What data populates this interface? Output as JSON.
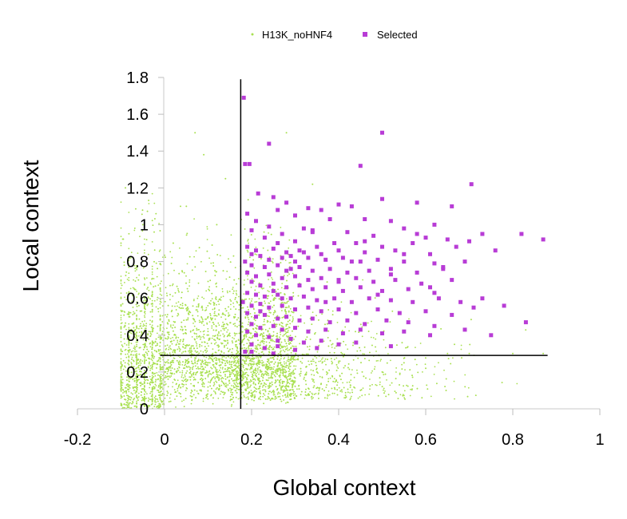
{
  "chart_data": {
    "type": "scatter",
    "xlabel": "Global context",
    "ylabel": "Local context",
    "xlim": [
      -0.2,
      1.0
    ],
    "ylim": [
      0,
      1.8
    ],
    "x_ticks": [
      "-0.2",
      "0",
      "0.2",
      "0.4",
      "0.6",
      "0.8",
      "1"
    ],
    "y_ticks": [
      "0",
      "0.2",
      "0.4",
      "0.6",
      "0.8",
      "1",
      "1.2",
      "1.4",
      "1.6",
      "1.8"
    ],
    "x_tick_values": [
      -0.2,
      0,
      0.2,
      0.4,
      0.6,
      0.8,
      1.0
    ],
    "y_tick_values": [
      0,
      0.2,
      0.4,
      0.6,
      0.8,
      1.0,
      1.2,
      1.4,
      1.6,
      1.8
    ],
    "legend_position": "top-center",
    "thresholds": {
      "x": 0.175,
      "y": 0.29,
      "x_line_range": [
        -0.01,
        0.88
      ],
      "y_line_range": [
        0,
        1.79
      ]
    },
    "series": [
      {
        "name": "H13K_noHNF4",
        "color": "#a8e050",
        "marker": "dot",
        "description_points": "dense cloud, approx 4000 points concentrated x in [-0.1, 0.3], y in [0, 0.6]",
        "points": [
          [
            -0.1,
            0.02
          ],
          [
            -0.1,
            0.3
          ],
          [
            -0.1,
            0.6
          ],
          [
            -0.1,
            0.9
          ],
          [
            -0.09,
            1.2
          ],
          [
            -0.08,
            0.5
          ],
          [
            -0.07,
            0.1
          ],
          [
            -0.06,
            0.7
          ],
          [
            -0.05,
            1.0
          ],
          [
            -0.04,
            0.3
          ],
          [
            0.0,
            0.4
          ],
          [
            0.02,
            0.9
          ],
          [
            0.05,
            1.1
          ],
          [
            0.07,
            1.5
          ],
          [
            0.1,
            0.5
          ],
          [
            0.12,
            1.0
          ],
          [
            0.14,
            1.25
          ],
          [
            0.16,
            0.7
          ],
          [
            0.18,
            0.2
          ],
          [
            0.2,
            0.5
          ],
          [
            0.25,
            0.3
          ],
          [
            0.3,
            0.15
          ],
          [
            0.35,
            0.2
          ],
          [
            0.4,
            0.25
          ],
          [
            0.45,
            0.1
          ],
          [
            0.5,
            0.2
          ],
          [
            0.55,
            0.25
          ],
          [
            0.6,
            0.22
          ],
          [
            0.65,
            0.3
          ],
          [
            0.7,
            0.3
          ],
          [
            0.8,
            0.3
          ],
          [
            0.87,
            0.3
          ],
          [
            0.28,
            1.5
          ],
          [
            0.34,
            1.22
          ],
          [
            0.09,
            1.38
          ]
        ]
      },
      {
        "name": "Selected",
        "color": "#b83cd6",
        "marker": "square",
        "points": [
          [
            0.182,
            1.69
          ],
          [
            0.5,
            1.5
          ],
          [
            0.24,
            1.44
          ],
          [
            0.45,
            1.32
          ],
          [
            0.185,
            1.33
          ],
          [
            0.195,
            1.33
          ],
          [
            0.705,
            1.22
          ],
          [
            0.215,
            1.17
          ],
          [
            0.25,
            1.15
          ],
          [
            0.28,
            1.12
          ],
          [
            0.5,
            1.14
          ],
          [
            0.58,
            1.12
          ],
          [
            0.66,
            1.1
          ],
          [
            0.4,
            1.11
          ],
          [
            0.43,
            1.1
          ],
          [
            0.33,
            1.09
          ],
          [
            0.19,
            1.06
          ],
          [
            0.26,
            1.08
          ],
          [
            0.3,
            1.05
          ],
          [
            0.36,
            1.08
          ],
          [
            0.38,
            1.03
          ],
          [
            0.46,
            1.03
          ],
          [
            0.52,
            1.02
          ],
          [
            0.62,
            1.0
          ],
          [
            0.21,
            1.02
          ],
          [
            0.24,
            0.99
          ],
          [
            0.32,
            0.98
          ],
          [
            0.34,
            0.96
          ],
          [
            0.27,
            0.95
          ],
          [
            0.42,
            0.96
          ],
          [
            0.48,
            0.94
          ],
          [
            0.55,
            0.98
          ],
          [
            0.2,
            0.97
          ],
          [
            0.73,
            0.95
          ],
          [
            0.82,
            0.95
          ],
          [
            0.87,
            0.92
          ],
          [
            0.65,
            0.92
          ],
          [
            0.7,
            0.91
          ],
          [
            0.6,
            0.93
          ],
          [
            0.23,
            0.93
          ],
          [
            0.26,
            0.9
          ],
          [
            0.3,
            0.91
          ],
          [
            0.35,
            0.88
          ],
          [
            0.39,
            0.9
          ],
          [
            0.44,
            0.9
          ],
          [
            0.5,
            0.88
          ],
          [
            0.57,
            0.9
          ],
          [
            0.67,
            0.88
          ],
          [
            0.76,
            0.86
          ],
          [
            0.19,
            0.88
          ],
          [
            0.21,
            0.86
          ],
          [
            0.25,
            0.87
          ],
          [
            0.28,
            0.85
          ],
          [
            0.32,
            0.85
          ],
          [
            0.36,
            0.84
          ],
          [
            0.4,
            0.86
          ],
          [
            0.46,
            0.85
          ],
          [
            0.53,
            0.86
          ],
          [
            0.61,
            0.84
          ],
          [
            0.2,
            0.84
          ],
          [
            0.22,
            0.83
          ],
          [
            0.24,
            0.81
          ],
          [
            0.27,
            0.82
          ],
          [
            0.3,
            0.8
          ],
          [
            0.33,
            0.82
          ],
          [
            0.37,
            0.81
          ],
          [
            0.41,
            0.82
          ],
          [
            0.45,
            0.8
          ],
          [
            0.49,
            0.81
          ],
          [
            0.55,
            0.8
          ],
          [
            0.62,
            0.79
          ],
          [
            0.69,
            0.8
          ],
          [
            0.185,
            0.8
          ],
          [
            0.2,
            0.78
          ],
          [
            0.23,
            0.77
          ],
          [
            0.26,
            0.78
          ],
          [
            0.29,
            0.76
          ],
          [
            0.31,
            0.77
          ],
          [
            0.34,
            0.75
          ],
          [
            0.38,
            0.76
          ],
          [
            0.42,
            0.74
          ],
          [
            0.47,
            0.75
          ],
          [
            0.52,
            0.76
          ],
          [
            0.58,
            0.74
          ],
          [
            0.64,
            0.76
          ],
          [
            0.19,
            0.74
          ],
          [
            0.21,
            0.72
          ],
          [
            0.24,
            0.73
          ],
          [
            0.27,
            0.71
          ],
          [
            0.3,
            0.72
          ],
          [
            0.33,
            0.7
          ],
          [
            0.36,
            0.71
          ],
          [
            0.4,
            0.7
          ],
          [
            0.44,
            0.71
          ],
          [
            0.48,
            0.69
          ],
          [
            0.53,
            0.7
          ],
          [
            0.59,
            0.68
          ],
          [
            0.66,
            0.7
          ],
          [
            0.2,
            0.69
          ],
          [
            0.22,
            0.67
          ],
          [
            0.25,
            0.68
          ],
          [
            0.28,
            0.66
          ],
          [
            0.31,
            0.67
          ],
          [
            0.34,
            0.65
          ],
          [
            0.37,
            0.66
          ],
          [
            0.41,
            0.64
          ],
          [
            0.45,
            0.66
          ],
          [
            0.5,
            0.64
          ],
          [
            0.56,
            0.65
          ],
          [
            0.62,
            0.63
          ],
          [
            0.19,
            0.63
          ],
          [
            0.21,
            0.62
          ],
          [
            0.23,
            0.61
          ],
          [
            0.26,
            0.62
          ],
          [
            0.29,
            0.6
          ],
          [
            0.32,
            0.61
          ],
          [
            0.35,
            0.59
          ],
          [
            0.39,
            0.6
          ],
          [
            0.43,
            0.58
          ],
          [
            0.47,
            0.6
          ],
          [
            0.52,
            0.59
          ],
          [
            0.57,
            0.58
          ],
          [
            0.63,
            0.6
          ],
          [
            0.68,
            0.58
          ],
          [
            0.73,
            0.6
          ],
          [
            0.78,
            0.56
          ],
          [
            0.18,
            0.58
          ],
          [
            0.2,
            0.56
          ],
          [
            0.22,
            0.57
          ],
          [
            0.24,
            0.55
          ],
          [
            0.27,
            0.56
          ],
          [
            0.3,
            0.54
          ],
          [
            0.33,
            0.55
          ],
          [
            0.36,
            0.53
          ],
          [
            0.4,
            0.54
          ],
          [
            0.44,
            0.52
          ],
          [
            0.49,
            0.54
          ],
          [
            0.54,
            0.52
          ],
          [
            0.6,
            0.53
          ],
          [
            0.66,
            0.51
          ],
          [
            0.71,
            0.55
          ],
          [
            0.19,
            0.52
          ],
          [
            0.21,
            0.5
          ],
          [
            0.23,
            0.51
          ],
          [
            0.26,
            0.49
          ],
          [
            0.28,
            0.5
          ],
          [
            0.31,
            0.48
          ],
          [
            0.34,
            0.49
          ],
          [
            0.38,
            0.47
          ],
          [
            0.42,
            0.48
          ],
          [
            0.46,
            0.46
          ],
          [
            0.51,
            0.48
          ],
          [
            0.56,
            0.47
          ],
          [
            0.62,
            0.45
          ],
          [
            0.2,
            0.46
          ],
          [
            0.22,
            0.44
          ],
          [
            0.25,
            0.45
          ],
          [
            0.27,
            0.43
          ],
          [
            0.3,
            0.44
          ],
          [
            0.33,
            0.42
          ],
          [
            0.37,
            0.43
          ],
          [
            0.41,
            0.41
          ],
          [
            0.45,
            0.43
          ],
          [
            0.5,
            0.41
          ],
          [
            0.55,
            0.42
          ],
          [
            0.61,
            0.4
          ],
          [
            0.69,
            0.43
          ],
          [
            0.21,
            0.4
          ],
          [
            0.24,
            0.39
          ],
          [
            0.26,
            0.37
          ],
          [
            0.29,
            0.38
          ],
          [
            0.32,
            0.36
          ],
          [
            0.36,
            0.37
          ],
          [
            0.4,
            0.35
          ],
          [
            0.44,
            0.36
          ],
          [
            0.75,
            0.4
          ],
          [
            0.83,
            0.47
          ],
          [
            0.2,
            0.35
          ],
          [
            0.23,
            0.33
          ],
          [
            0.26,
            0.34
          ],
          [
            0.3,
            0.32
          ],
          [
            0.35,
            0.33
          ],
          [
            0.52,
            0.34
          ],
          [
            0.185,
            0.31
          ],
          [
            0.2,
            0.31
          ],
          [
            0.25,
            0.3
          ],
          [
            0.19,
            0.42
          ],
          [
            0.22,
            0.53
          ],
          [
            0.25,
            0.64
          ],
          [
            0.28,
            0.75
          ],
          [
            0.31,
            0.86
          ],
          [
            0.34,
            0.97
          ],
          [
            0.37,
            0.58
          ],
          [
            0.4,
            0.69
          ],
          [
            0.43,
            0.8
          ],
          [
            0.46,
            0.91
          ],
          [
            0.49,
            0.62
          ],
          [
            0.52,
            0.73
          ],
          [
            0.55,
            0.84
          ],
          [
            0.58,
            0.95
          ],
          [
            0.61,
            0.66
          ],
          [
            0.64,
            0.77
          ],
          [
            0.27,
            0.6
          ],
          [
            0.29,
            0.83
          ]
        ]
      }
    ]
  }
}
